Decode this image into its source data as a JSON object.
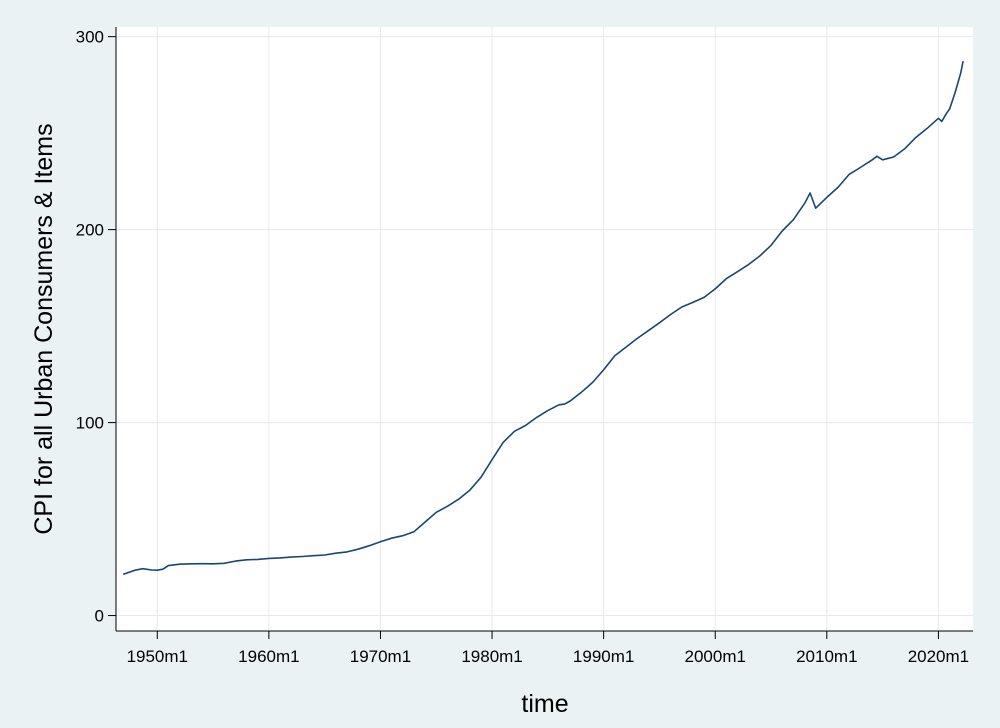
{
  "chart_data": {
    "type": "line",
    "title": "",
    "xlabel": "time",
    "ylabel": "CPI for all Urban Consumers & Items",
    "xlim": [
      1946.3,
      2023.1
    ],
    "ylim": [
      -8,
      305
    ],
    "x_ticks": [
      1950,
      1960,
      1970,
      1980,
      1990,
      2000,
      2010,
      2020
    ],
    "x_tick_labels": [
      "1950m1",
      "1960m1",
      "1970m1",
      "1980m1",
      "1990m1",
      "2000m1",
      "2010m1",
      "2020m1"
    ],
    "y_ticks": [
      0,
      100,
      200,
      300
    ],
    "y_tick_labels": [
      "0",
      "100",
      "200",
      "300"
    ],
    "grid": true,
    "legend": "none",
    "colors": {
      "line": "#1a476f",
      "plot_bg": "#ffffff",
      "outer_bg": "#eaf2f3",
      "grid": "#e6eaec"
    },
    "series": [
      {
        "x": [
          1947.0,
          1948.0,
          1948.7,
          1949.5,
          1950.0,
          1950.5,
          1951.0,
          1952.0,
          1953.0,
          1954.0,
          1955.0,
          1956.0,
          1957.0,
          1958.0,
          1959.0,
          1960.0,
          1961.0,
          1962.0,
          1963.0,
          1964.0,
          1965.0,
          1966.0,
          1967.0,
          1968.0,
          1969.0,
          1970.0,
          1971.0,
          1972.0,
          1973.0,
          1974.0,
          1975.0,
          1976.0,
          1977.0,
          1978.0,
          1979.0,
          1980.0,
          1981.0,
          1982.0,
          1983.0,
          1984.0,
          1985.0,
          1986.0,
          1986.5,
          1987.0,
          1988.0,
          1989.0,
          1990.0,
          1991.0,
          1992.0,
          1993.0,
          1994.0,
          1995.0,
          1996.0,
          1997.0,
          1998.0,
          1999.0,
          2000.0,
          2001.0,
          2002.0,
          2003.0,
          2004.0,
          2005.0,
          2006.0,
          2007.0,
          2008.0,
          2008.5,
          2009.0,
          2010.0,
          2011.0,
          2012.0,
          2013.0,
          2014.0,
          2014.5,
          2015.0,
          2016.0,
          2017.0,
          2018.0,
          2019.0,
          2020.0,
          2020.3,
          2020.7,
          2021.0,
          2021.5,
          2022.0,
          2022.2
        ],
        "values": [
          21.5,
          23.5,
          24.3,
          23.6,
          23.5,
          24.0,
          25.9,
          26.6,
          26.8,
          26.9,
          26.8,
          27.1,
          28.2,
          28.9,
          29.1,
          29.6,
          29.9,
          30.3,
          30.6,
          31.0,
          31.4,
          32.3,
          33.0,
          34.4,
          36.2,
          38.3,
          40.1,
          41.4,
          43.4,
          48.5,
          53.5,
          56.6,
          60.3,
          64.9,
          71.6,
          80.8,
          89.8,
          95.5,
          98.5,
          102.7,
          106.2,
          109.2,
          109.6,
          111.2,
          115.7,
          120.8,
          127.3,
          134.6,
          139.1,
          143.6,
          147.6,
          151.7,
          156.0,
          159.9,
          162.3,
          164.9,
          169.3,
          174.6,
          178.2,
          182.0,
          186.4,
          191.8,
          199.3,
          205.1,
          213.5,
          219.0,
          211.1,
          216.7,
          221.9,
          228.6,
          232.2,
          235.9,
          238.0,
          236.2,
          237.7,
          242.0,
          247.9,
          252.5,
          257.7,
          256.1,
          260.0,
          262.5,
          271.0,
          281.1,
          287.0
        ]
      }
    ]
  }
}
